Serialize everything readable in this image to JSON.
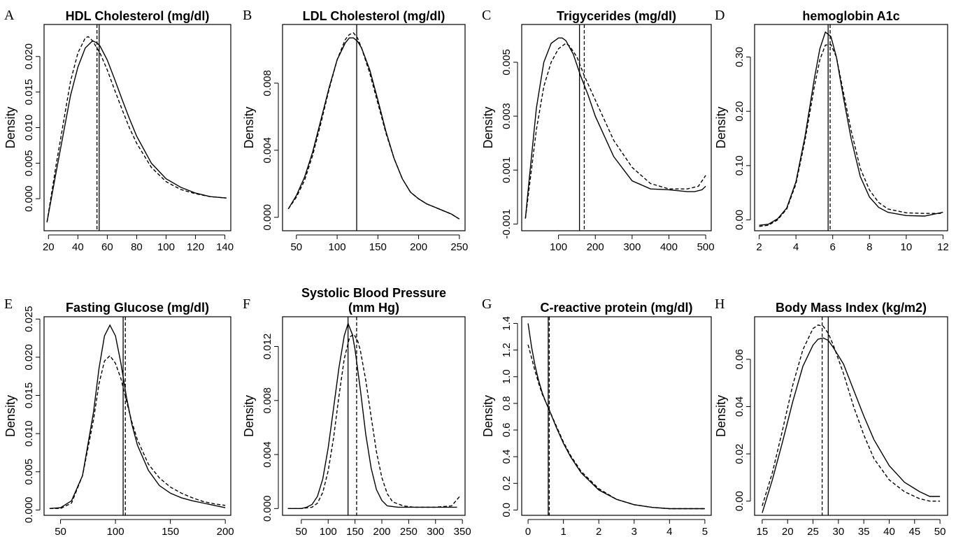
{
  "figure": {
    "panels": [
      {
        "letter": "A",
        "title_lines": [
          "HDL Cholesterol (mg/dl)"
        ],
        "ylabel": "Density",
        "xticks": [
          "20",
          "40",
          "60",
          "80",
          "100",
          "120",
          "140"
        ],
        "yticks": [
          "0.000",
          "0.005",
          "0.010",
          "0.015",
          "0.020"
        ]
      },
      {
        "letter": "B",
        "title_lines": [
          "LDL Cholesterol (mg/dl)"
        ],
        "ylabel": "Density",
        "xticks": [
          "50",
          "100",
          "150",
          "200",
          "250"
        ],
        "yticks": [
          "0.000",
          "0.004",
          "0.008"
        ]
      },
      {
        "letter": "C",
        "title_lines": [
          "Trigycerides (mg/dl)"
        ],
        "ylabel": "Density",
        "xticks": [
          "100",
          "200",
          "300",
          "400",
          "500"
        ],
        "yticks": [
          "-0.001",
          "0.001",
          "0.003",
          "0.005"
        ]
      },
      {
        "letter": "D",
        "title_lines": [
          "hemoglobin A1c"
        ],
        "ylabel": "Density",
        "xticks": [
          "2",
          "4",
          "6",
          "8",
          "10",
          "12"
        ],
        "yticks": [
          "0.00",
          "0.10",
          "0.20",
          "0.30"
        ]
      },
      {
        "letter": "E",
        "title_lines": [
          "Fasting Glucose (mg/dl)"
        ],
        "ylabel": "Density",
        "xticks": [
          "50",
          "100",
          "150",
          "200"
        ],
        "yticks": [
          "0.000",
          "0.005",
          "0.010",
          "0.015",
          "0.020",
          "0.025"
        ]
      },
      {
        "letter": "F",
        "title_lines": [
          "Systolic Blood Pressure",
          "(mm Hg)"
        ],
        "ylabel": "Density",
        "xticks": [
          "50",
          "100",
          "150",
          "200",
          "250",
          "300",
          "350"
        ],
        "yticks": [
          "0.000",
          "0.004",
          "0.008",
          "0.012"
        ]
      },
      {
        "letter": "G",
        "title_lines": [
          "C-reactive protein (mg/dl)"
        ],
        "ylabel": "Density",
        "xticks": [
          "0",
          "1",
          "2",
          "3",
          "4",
          "5"
        ],
        "yticks": [
          "0.0",
          "0.2",
          "0.4",
          "0.6",
          "0.8",
          "1.0",
          "1.2",
          "1.4"
        ]
      },
      {
        "letter": "H",
        "title_lines": [
          "Body Mass Index (kg/m2)"
        ],
        "ylabel": "Density",
        "xticks": [
          "15",
          "20",
          "25",
          "30",
          "35",
          "40",
          "45",
          "50"
        ],
        "yticks": [
          "0.00",
          "0.02",
          "0.04",
          "0.06"
        ]
      }
    ]
  },
  "chart_data": [
    {
      "type": "line",
      "title": "HDL Cholesterol (mg/dl)",
      "ylabel": "Density",
      "xlim": [
        17,
        144
      ],
      "ylim": [
        -0.0045,
        0.0245
      ],
      "series": [
        {
          "style": "solid",
          "x": [
            19,
            25,
            30,
            35,
            40,
            45,
            50,
            53,
            55,
            60,
            65,
            70,
            75,
            80,
            90,
            100,
            110,
            120,
            130,
            141
          ],
          "y": [
            -0.0033,
            0.0035,
            0.009,
            0.0145,
            0.0185,
            0.0212,
            0.0222,
            0.0219,
            0.0215,
            0.0195,
            0.0168,
            0.014,
            0.0113,
            0.0088,
            0.005,
            0.0028,
            0.0016,
            0.0008,
            0.0003,
            0.0001
          ]
        },
        {
          "style": "dashed",
          "x": [
            19,
            25,
            30,
            35,
            40,
            45,
            47,
            50,
            55,
            60,
            65,
            70,
            75,
            80,
            90,
            100,
            110,
            120,
            130,
            141
          ],
          "y": [
            -0.0033,
            0.0045,
            0.0105,
            0.0165,
            0.0205,
            0.0226,
            0.0228,
            0.0222,
            0.0205,
            0.0181,
            0.0153,
            0.0126,
            0.01,
            0.0078,
            0.0044,
            0.0024,
            0.0013,
            0.0007,
            0.0003,
            0.0001
          ]
        }
      ],
      "vlines": [
        {
          "style": "solid",
          "x": 54.5
        },
        {
          "style": "dashed",
          "x": 53
        }
      ]
    },
    {
      "type": "line",
      "title": "LDL Cholesterol (mg/dl)",
      "ylabel": "Density",
      "xlim": [
        33,
        257
      ],
      "ylim": [
        -0.0008,
        0.0115
      ],
      "series": [
        {
          "style": "solid",
          "x": [
            40,
            50,
            60,
            70,
            80,
            90,
            100,
            110,
            115,
            120,
            125,
            130,
            140,
            150,
            160,
            170,
            180,
            190,
            200,
            210,
            220,
            230,
            240,
            250
          ],
          "y": [
            0.0005,
            0.0013,
            0.0024,
            0.0039,
            0.0058,
            0.0077,
            0.0094,
            0.0104,
            0.0107,
            0.0107,
            0.0105,
            0.0101,
            0.0088,
            0.007,
            0.0051,
            0.0035,
            0.0023,
            0.0015,
            0.0011,
            0.0008,
            0.0006,
            0.0004,
            0.0002,
            -0.0001
          ]
        },
        {
          "style": "dashed",
          "x": [
            40,
            50,
            60,
            70,
            80,
            90,
            100,
            110,
            115,
            120,
            125,
            130,
            140,
            150,
            160,
            170,
            180,
            190,
            200,
            210,
            220,
            230,
            240,
            250
          ],
          "y": [
            0.0005,
            0.0012,
            0.0022,
            0.0037,
            0.0056,
            0.0076,
            0.0094,
            0.0106,
            0.0109,
            0.011,
            0.0107,
            0.0101,
            0.0086,
            0.0068,
            0.005,
            0.0035,
            0.0023,
            0.0015,
            0.0011,
            0.0008,
            0.0006,
            0.0004,
            0.0002,
            -0.0001
          ]
        }
      ],
      "vlines": [
        {
          "style": "solid",
          "x": 124
        }
      ]
    },
    {
      "type": "line",
      "title": "Trigycerides (mg/dl)",
      "ylabel": "Density",
      "xlim": [
        0,
        515
      ],
      "ylim": [
        -0.00125,
        0.0064
      ],
      "series": [
        {
          "style": "solid",
          "x": [
            10,
            20,
            40,
            60,
            80,
            100,
            110,
            120,
            140,
            160,
            180,
            200,
            250,
            300,
            350,
            400,
            450,
            470,
            490,
            500
          ],
          "y": [
            -0.0008,
            0.0006,
            0.0033,
            0.005,
            0.0057,
            0.0059,
            0.0059,
            0.0058,
            0.0053,
            0.0045,
            0.0038,
            0.003,
            0.0015,
            0.0006,
            0.0003,
            0.00027,
            0.0002,
            0.0002,
            0.00027,
            0.0004
          ]
        },
        {
          "style": "dashed",
          "x": [
            10,
            20,
            40,
            60,
            80,
            100,
            120,
            130,
            150,
            170,
            200,
            250,
            300,
            350,
            400,
            450,
            480,
            500
          ],
          "y": [
            -0.0008,
            0.0003,
            0.0025,
            0.0041,
            0.005,
            0.0055,
            0.0057,
            0.0056,
            0.0052,
            0.0045,
            0.0036,
            0.0021,
            0.0011,
            0.0005,
            0.0003,
            0.0003,
            0.0004,
            0.0008
          ]
        }
      ],
      "vlines": [
        {
          "style": "solid",
          "x": 157
        },
        {
          "style": "dashed",
          "x": 170
        }
      ]
    },
    {
      "type": "line",
      "title": "hemoglobin A1c",
      "ylabel": "Density",
      "xlim": [
        1.75,
        12.25
      ],
      "ylim": [
        -0.02,
        0.36
      ],
      "series": [
        {
          "style": "solid",
          "x": [
            2,
            2.5,
            3,
            3.5,
            4,
            4.5,
            5,
            5.3,
            5.6,
            5.9,
            6.2,
            6.6,
            7,
            7.5,
            8,
            8.5,
            9,
            10,
            11,
            12
          ],
          "y": [
            -0.01,
            -0.008,
            0.002,
            0.022,
            0.07,
            0.155,
            0.26,
            0.315,
            0.346,
            0.338,
            0.3,
            0.222,
            0.15,
            0.08,
            0.042,
            0.023,
            0.014,
            0.008,
            0.007,
            0.014
          ]
        },
        {
          "style": "dashed",
          "x": [
            2,
            2.5,
            3,
            3.5,
            4,
            4.5,
            5,
            5.3,
            5.6,
            5.9,
            6.2,
            6.6,
            7,
            7.5,
            8,
            8.5,
            9,
            10,
            11,
            12
          ],
          "y": [
            -0.012,
            -0.01,
            0,
            0.02,
            0.066,
            0.148,
            0.245,
            0.295,
            0.322,
            0.323,
            0.3,
            0.232,
            0.165,
            0.095,
            0.055,
            0.032,
            0.02,
            0.013,
            0.012,
            0.012
          ]
        }
      ],
      "vlines": [
        {
          "style": "solid",
          "x": 5.75
        },
        {
          "style": "dashed",
          "x": 5.86
        }
      ]
    },
    {
      "type": "line",
      "title": "Fasting Glucose (mg/dl)",
      "ylabel": "Density",
      "xlim": [
        35,
        205
      ],
      "ylim": [
        -0.0007,
        0.0253
      ],
      "series": [
        {
          "style": "solid",
          "x": [
            40,
            50,
            60,
            70,
            80,
            85,
            90,
            95,
            100,
            105,
            110,
            115,
            120,
            130,
            140,
            150,
            160,
            170,
            180,
            190,
            200
          ],
          "y": [
            0.0002,
            0.0003,
            0.0012,
            0.0045,
            0.0128,
            0.0185,
            0.0228,
            0.0242,
            0.0228,
            0.0192,
            0.0148,
            0.0112,
            0.0085,
            0.0052,
            0.0032,
            0.0022,
            0.0016,
            0.0012,
            0.0009,
            0.0006,
            0.0003
          ]
        },
        {
          "style": "dashed",
          "x": [
            40,
            50,
            60,
            70,
            80,
            85,
            90,
            95,
            100,
            105,
            110,
            115,
            120,
            130,
            140,
            150,
            160,
            170,
            180,
            190,
            200
          ],
          "y": [
            0.0002,
            0.0002,
            0.0009,
            0.0045,
            0.0118,
            0.0165,
            0.0195,
            0.0202,
            0.0192,
            0.0172,
            0.0143,
            0.0115,
            0.0092,
            0.006,
            0.0042,
            0.003,
            0.0022,
            0.0016,
            0.0011,
            0.0008,
            0.0006
          ]
        }
      ],
      "vlines": [
        {
          "style": "solid",
          "x": 107
        },
        {
          "style": "dashed",
          "x": 109
        }
      ]
    },
    {
      "type": "line",
      "title": "Systolic Blood Pressure (mm Hg)",
      "ylabel": "Density",
      "xlim": [
        15,
        355
      ],
      "ylim": [
        -0.0005,
        0.0142
      ],
      "series": [
        {
          "style": "solid",
          "x": [
            25,
            50,
            60,
            70,
            80,
            90,
            100,
            110,
            120,
            130,
            137,
            145,
            150,
            160,
            170,
            180,
            190,
            200,
            210,
            230,
            250,
            300,
            340
          ],
          "y": [
            0,
            0,
            0.0001,
            0.0003,
            0.0009,
            0.0022,
            0.0045,
            0.0074,
            0.0104,
            0.0128,
            0.0137,
            0.0129,
            0.0118,
            0.0088,
            0.0055,
            0.003,
            0.0014,
            0.0006,
            0.0002,
            0.0001,
            0.0001,
            0.0001,
            0.0001
          ]
        },
        {
          "style": "dashed",
          "x": [
            25,
            50,
            70,
            80,
            90,
            100,
            110,
            120,
            130,
            140,
            148,
            155,
            160,
            170,
            180,
            190,
            200,
            210,
            220,
            240,
            260,
            300,
            330,
            345
          ],
          "y": [
            0,
            0,
            0.0001,
            0.0004,
            0.0012,
            0.0028,
            0.0052,
            0.0083,
            0.0111,
            0.0127,
            0.0129,
            0.0124,
            0.0117,
            0.0095,
            0.0068,
            0.0042,
            0.0023,
            0.0011,
            0.0005,
            0.0002,
            0.0001,
            0.0001,
            0.0002,
            0.0009
          ]
        }
      ],
      "vlines": [
        {
          "style": "solid",
          "x": 137
        },
        {
          "style": "dashed",
          "x": 153
        }
      ]
    },
    {
      "type": "line",
      "title": "C-reactive protein (mg/dl)",
      "ylabel": "Density",
      "xlim": [
        -0.18,
        5.18
      ],
      "ylim": [
        -0.04,
        1.45
      ],
      "series": [
        {
          "style": "solid",
          "x": [
            0,
            0.1,
            0.2,
            0.3,
            0.4,
            0.5,
            0.6,
            0.8,
            1,
            1.2,
            1.5,
            2,
            2.5,
            3,
            3.5,
            4,
            4.5,
            5
          ],
          "y": [
            1.4,
            1.22,
            1.08,
            0.97,
            0.88,
            0.81,
            0.75,
            0.62,
            0.5,
            0.4,
            0.28,
            0.15,
            0.08,
            0.04,
            0.02,
            0.01,
            0.01,
            0.01
          ]
        },
        {
          "style": "dashed",
          "x": [
            0,
            0.1,
            0.2,
            0.3,
            0.4,
            0.5,
            0.6,
            0.8,
            1,
            1.2,
            1.5,
            2,
            2.5,
            3,
            3.5,
            4,
            4.5,
            5
          ],
          "y": [
            1.24,
            1.14,
            1.04,
            0.95,
            0.87,
            0.81,
            0.75,
            0.63,
            0.51,
            0.41,
            0.29,
            0.16,
            0.08,
            0.04,
            0.02,
            0.01,
            0.01,
            0.01
          ]
        }
      ],
      "vlines": [
        {
          "style": "solid",
          "x": 0.57
        },
        {
          "style": "dashed",
          "x": 0.6
        }
      ]
    },
    {
      "type": "line",
      "title": "Body Mass Index (kg/m2)",
      "ylabel": "Density",
      "xlim": [
        13.5,
        51.5
      ],
      "ylim": [
        -0.006,
        0.078
      ],
      "series": [
        {
          "style": "solid",
          "x": [
            15,
            17,
            19,
            21,
            23,
            25,
            26,
            27,
            28,
            29,
            31,
            33,
            35,
            37,
            40,
            43,
            46,
            48,
            50
          ],
          "y": [
            -0.005,
            0.009,
            0.025,
            0.042,
            0.057,
            0.066,
            0.0685,
            0.069,
            0.068,
            0.065,
            0.058,
            0.047,
            0.036,
            0.026,
            0.015,
            0.008,
            0.004,
            0.002,
            0.002
          ]
        },
        {
          "style": "dashed",
          "x": [
            15,
            17,
            19,
            21,
            23,
            25,
            26,
            27,
            28,
            29,
            31,
            33,
            35,
            37,
            40,
            43,
            46,
            48,
            50
          ],
          "y": [
            -0.002,
            0.012,
            0.03,
            0.049,
            0.064,
            0.073,
            0.0745,
            0.074,
            0.071,
            0.066,
            0.054,
            0.04,
            0.028,
            0.018,
            0.009,
            0.004,
            0.001,
            0,
            0
          ]
        }
      ],
      "vlines": [
        {
          "style": "solid",
          "x": 28
        },
        {
          "style": "dashed",
          "x": 26.8
        }
      ]
    }
  ]
}
